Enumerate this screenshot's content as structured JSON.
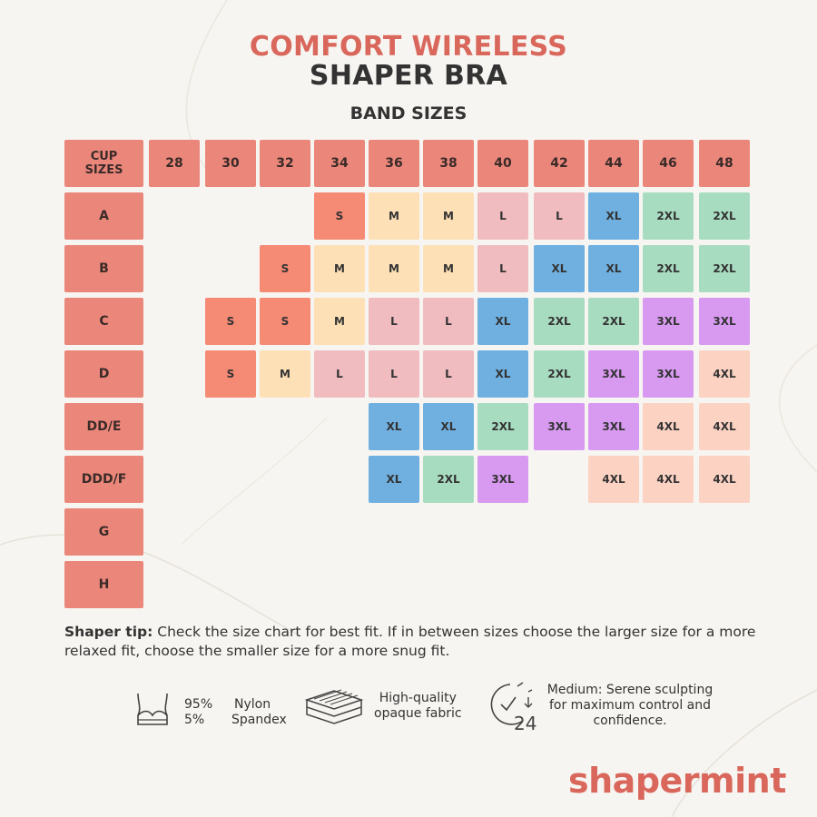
{
  "title": {
    "line1": "COMFORT WIRELESS",
    "line2": "SHAPER BRA"
  },
  "band_label": "BAND SIZES",
  "colors": {
    "header": "#eb877a",
    "S": "#f58a75",
    "M": "#fde0b6",
    "L": "#f0bcc0",
    "XL": "#6fb0e0",
    "2XL": "#a8dcc0",
    "3XL": "#d89af0",
    "4XL": "#fcd2c2",
    "brand": "#d9675c"
  },
  "size_chart": {
    "corner_label": "CUP\nSIZES",
    "bands": [
      "28",
      "30",
      "32",
      "34",
      "36",
      "38",
      "40",
      "42",
      "44",
      "46",
      "48"
    ],
    "rows": [
      {
        "cup": "A",
        "sizes": [
          "",
          "",
          "",
          "S",
          "M",
          "M",
          "L",
          "L",
          "XL",
          "2XL",
          "2XL"
        ]
      },
      {
        "cup": "B",
        "sizes": [
          "",
          "",
          "S",
          "M",
          "M",
          "M",
          "L",
          "XL",
          "XL",
          "2XL",
          "2XL"
        ]
      },
      {
        "cup": "C",
        "sizes": [
          "",
          "S",
          "S",
          "M",
          "L",
          "L",
          "XL",
          "2XL",
          "2XL",
          "3XL",
          "3XL"
        ]
      },
      {
        "cup": "D",
        "sizes": [
          "",
          "S",
          "M",
          "L",
          "L",
          "L",
          "XL",
          "2XL",
          "3XL",
          "3XL",
          "4XL"
        ]
      },
      {
        "cup": "DD/E",
        "sizes": [
          "",
          "",
          "",
          "",
          "XL",
          "XL",
          "2XL",
          "3XL",
          "3XL",
          "4XL",
          "4XL"
        ]
      },
      {
        "cup": "DDD/F",
        "sizes": [
          "",
          "",
          "",
          "",
          "XL",
          "2XL",
          "3XL",
          "",
          "4XL",
          "4XL",
          "4XL"
        ]
      },
      {
        "cup": "G",
        "sizes": [
          "",
          "",
          "",
          "",
          "",
          "",
          "",
          "",
          "",
          "",
          ""
        ]
      },
      {
        "cup": "H",
        "sizes": [
          "",
          "",
          "",
          "",
          "",
          "",
          "",
          "",
          "",
          "",
          ""
        ]
      }
    ]
  },
  "tip": {
    "label": "Shaper tip:",
    "text": " Check the size chart for best fit. If in between sizes choose the larger size for a more relaxed fit, choose the smaller size for a more snug fit."
  },
  "features": {
    "composition": {
      "icon": "bra-icon",
      "pct1": "95%",
      "pct2": "5%",
      "mat1": "Nylon",
      "mat2": "Spandex"
    },
    "fabric": {
      "icon": "fabric-layers-icon",
      "line1": "High-quality",
      "line2": "opaque fabric"
    },
    "compression": {
      "icon": "clock-24-icon",
      "line1": "Medium: Serene sculpting",
      "line2": "for maximum control and",
      "line3": "confidence.",
      "icon_number": "24"
    }
  },
  "logo": "shapermint"
}
